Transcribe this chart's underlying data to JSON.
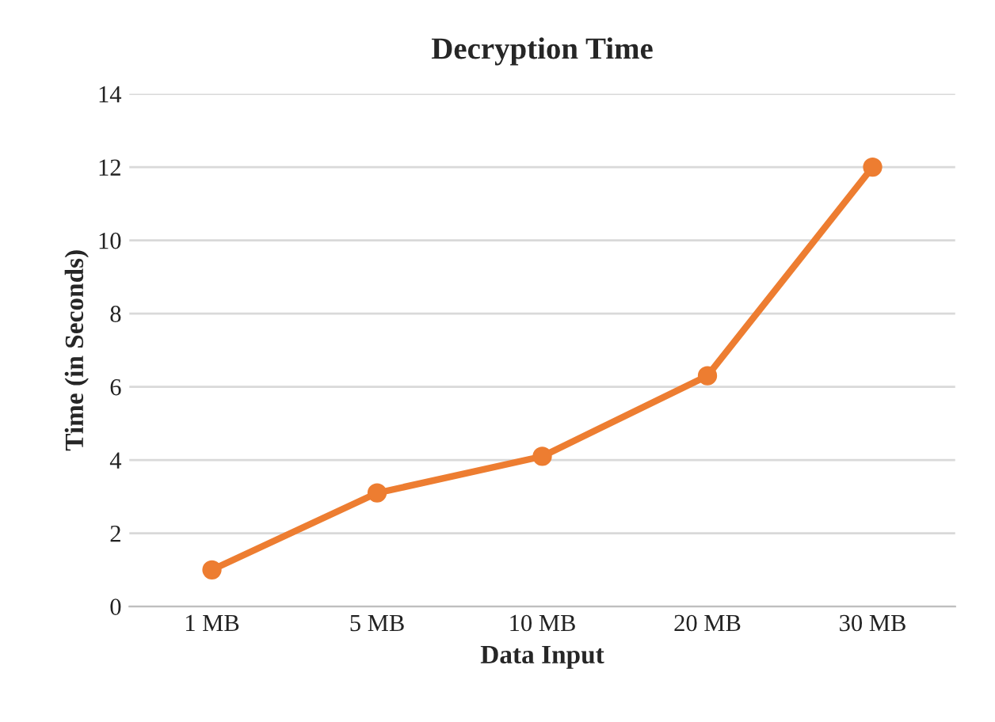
{
  "chart_data": {
    "type": "line",
    "title": "Decryption Time",
    "xlabel": "Data Input",
    "ylabel": "Time (in Seconds)",
    "categories": [
      "1 MB",
      "5 MB",
      "10 MB",
      "20 MB",
      "30 MB"
    ],
    "series": [
      {
        "color": "#ed7d31",
        "values": [
          1,
          3.1,
          4.1,
          6.3,
          12
        ]
      }
    ],
    "ylim": [
      0,
      14
    ],
    "yticks": [
      0,
      2,
      4,
      6,
      8,
      10,
      12,
      14
    ],
    "grid": "y",
    "marker": "circle",
    "line_style": "solid"
  }
}
